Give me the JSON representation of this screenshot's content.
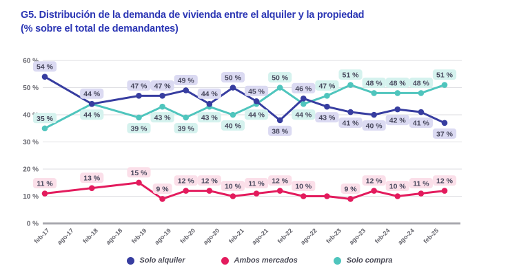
{
  "title": {
    "line1": "G5. Distribución de la demanda de vivienda entre el alquiler y la propiedad",
    "line2": "(% sobre el total de demandantes)"
  },
  "chart_data": {
    "type": "line",
    "title": "G5. Distribución de la demanda de vivienda entre el alquiler y la propiedad (% sobre el total de demandantes)",
    "unit": "%",
    "ylim": [
      0,
      60
    ],
    "y_ticks": [
      0,
      10,
      20,
      30,
      40,
      50,
      60
    ],
    "y_tick_suffix": " %",
    "grid": true,
    "legend_position": "bottom",
    "x_tick_labels": [
      "feb-17",
      "ago-17",
      "feb-18",
      "ago-18",
      "feb-19",
      "ago-19",
      "feb-20",
      "ago-20",
      "feb-21",
      "ago-21",
      "feb-22",
      "ago-22",
      "feb-23",
      "ago-23",
      "feb-24",
      "ago-24",
      "feb-25"
    ],
    "x_slot_count": 18,
    "series": [
      {
        "name": "Solo compra",
        "color": "#4fc5bd",
        "label_bg": "#d5f2ee",
        "label_color": "#47475c",
        "slots": [
          0,
          2,
          4,
          5,
          6,
          7,
          8,
          9,
          10,
          11,
          12,
          13,
          14,
          15,
          16,
          17
        ],
        "values": [
          35,
          44,
          39,
          43,
          39,
          43,
          40,
          44,
          50,
          44,
          47,
          51,
          48,
          48,
          48,
          51
        ],
        "labels": [
          "35 %",
          "44 %",
          "39 %",
          "43 %",
          "39 %",
          "43 %",
          "40 %",
          "44 %",
          "50 %",
          "44 %",
          "47 %",
          "51 %",
          "48 %",
          "48 %",
          "48 %",
          "51 %"
        ],
        "label_side": [
          "a",
          "b",
          "b",
          "b",
          "b",
          "b",
          "b",
          "b",
          "a",
          "b",
          "a",
          "a",
          "a",
          "a",
          "a",
          "a"
        ]
      },
      {
        "name": "Solo alquiler",
        "color": "#373da0",
        "label_bg": "#dbdaf2",
        "label_color": "#47475c",
        "slots": [
          0,
          2,
          4,
          5,
          6,
          7,
          8,
          9,
          10,
          11,
          12,
          13,
          14,
          15,
          16,
          17
        ],
        "values": [
          54,
          44,
          47,
          47,
          49,
          44,
          50,
          45,
          38,
          46,
          43,
          41,
          40,
          42,
          41,
          37
        ],
        "labels": [
          "54 %",
          "44 %",
          "47 %",
          "47 %",
          "49 %",
          "44 %",
          "50 %",
          "45 %",
          "38 %",
          "46 %",
          "43 %",
          "41 %",
          "40 %",
          "42 %",
          "41 %",
          "37 %"
        ],
        "label_side": [
          "a",
          "a",
          "a",
          "a",
          "a",
          "a",
          "a",
          "a",
          "b",
          "a",
          "b",
          "b",
          "b",
          "b",
          "b",
          "b"
        ]
      },
      {
        "name": "Ambos mercados",
        "color": "#e31b5d",
        "label_bg": "#fbdfe9",
        "label_color": "#47475c",
        "slots": [
          0,
          2,
          4,
          5,
          6,
          7,
          8,
          9,
          10,
          11,
          12,
          13,
          14,
          15,
          16,
          17
        ],
        "values": [
          11,
          13,
          15,
          9,
          12,
          12,
          10,
          11,
          12,
          10,
          10,
          9,
          12,
          10,
          11,
          12
        ],
        "labels": [
          "11 %",
          "13 %",
          "15 %",
          "9 %",
          "12 %",
          "12 %",
          "10 %",
          "11 %",
          "12 %",
          "10 %",
          null,
          "9 %",
          "12 %",
          "10 %",
          "11 %",
          "12 %"
        ],
        "label_side": [
          "a",
          "a",
          "a",
          "a",
          "a",
          "a",
          "a",
          "a",
          "a",
          "a",
          "a",
          "a",
          "a",
          "a",
          "a",
          "a"
        ]
      }
    ]
  },
  "legend": {
    "items": [
      {
        "label": "Solo alquiler",
        "color": "#373da0"
      },
      {
        "label": "Ambos mercados",
        "color": "#e31b5d"
      },
      {
        "label": "Solo compra",
        "color": "#4fc5bd"
      }
    ]
  },
  "colors": {
    "title": "#2b36b4",
    "gridline": "#dedee2",
    "zero_line": "#a8a8ae",
    "tick_text": "#65656d"
  }
}
